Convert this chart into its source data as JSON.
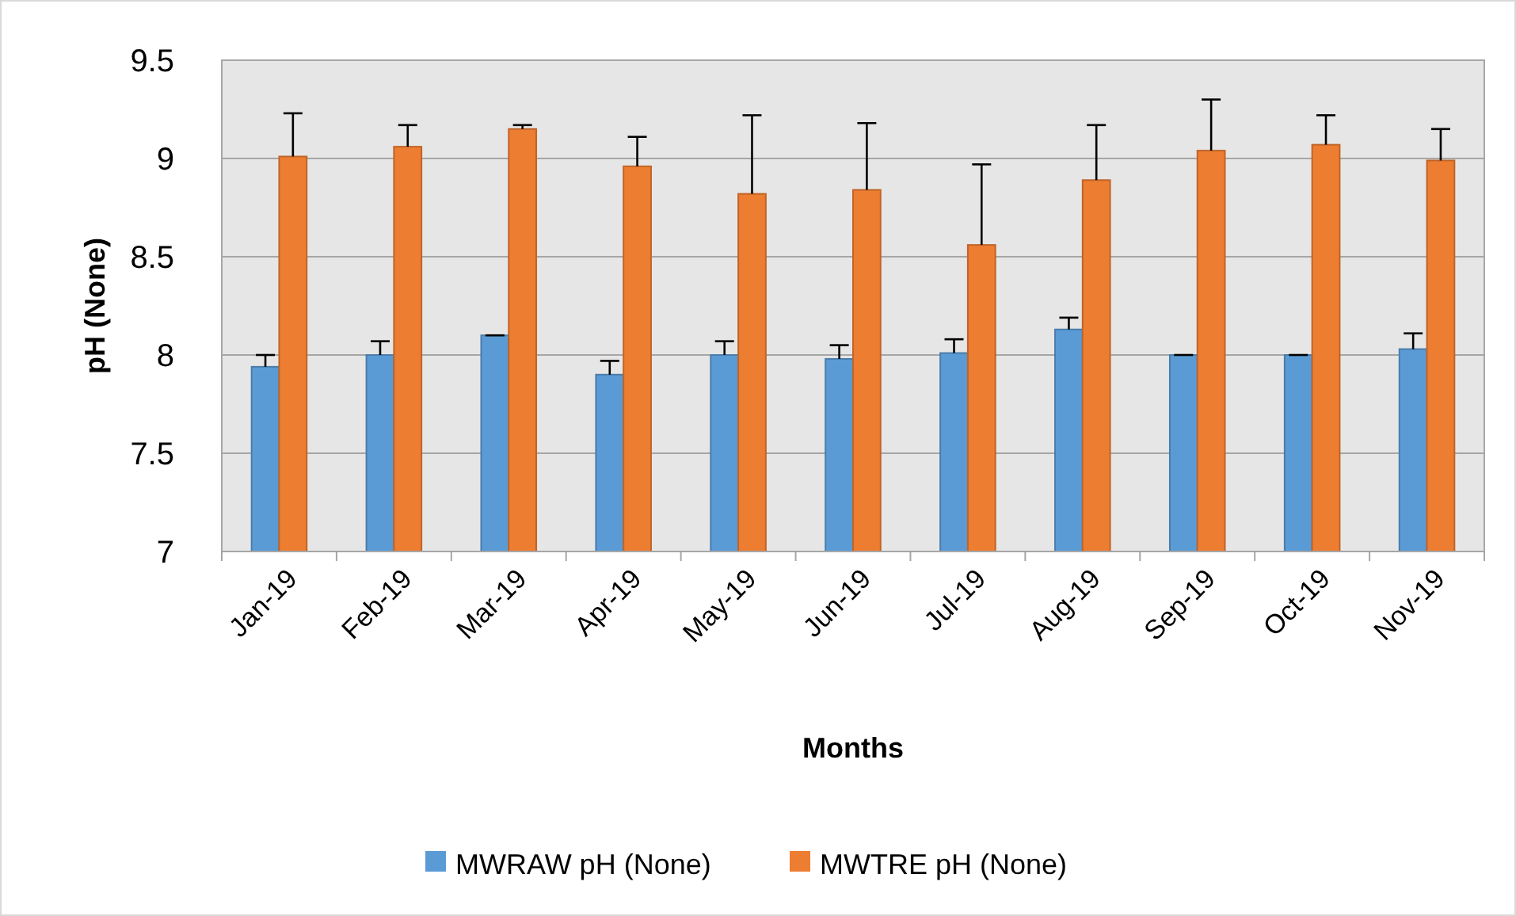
{
  "chart_data": {
    "type": "bar",
    "xlabel": "Months",
    "ylabel": "pH (None)",
    "categories": [
      "Jan-19",
      "Feb-19",
      "Mar-19",
      "Apr-19",
      "May-19",
      "Jun-19",
      "Jul-19",
      "Aug-19",
      "Sep-19",
      "Oct-19",
      "Nov-19"
    ],
    "series": [
      {
        "name": "MWRAW pH (None)",
        "color": "#5b9bd5",
        "values": [
          7.94,
          8.0,
          8.1,
          7.9,
          8.0,
          7.98,
          8.01,
          8.13,
          8.0,
          8.0,
          8.03
        ],
        "errors": [
          [
            7.94,
            8.0
          ],
          [
            8.0,
            8.07
          ],
          [
            8.1,
            8.1
          ],
          [
            7.9,
            7.97
          ],
          [
            8.0,
            8.07
          ],
          [
            7.98,
            8.05
          ],
          [
            8.01,
            8.08
          ],
          [
            8.13,
            8.19
          ],
          [
            8.0,
            8.0
          ],
          [
            8.0,
            8.0
          ],
          [
            8.03,
            8.11
          ]
        ]
      },
      {
        "name": "MWTRE pH (None)",
        "color": "#ed7d31",
        "values": [
          9.01,
          9.06,
          9.15,
          8.96,
          8.82,
          8.84,
          8.56,
          8.89,
          9.04,
          9.07,
          8.99
        ],
        "errors": [
          [
            9.01,
            9.23
          ],
          [
            9.06,
            9.17
          ],
          [
            9.15,
            9.17
          ],
          [
            8.96,
            9.11
          ],
          [
            8.82,
            9.22
          ],
          [
            8.84,
            9.18
          ],
          [
            8.56,
            8.97
          ],
          [
            8.89,
            9.17
          ],
          [
            9.04,
            9.3
          ],
          [
            9.07,
            9.22
          ],
          [
            8.99,
            9.15
          ]
        ]
      }
    ],
    "ylim": [
      7,
      9.5
    ],
    "yticks": [
      7,
      7.5,
      8,
      8.5,
      9,
      9.5
    ],
    "grid": "y",
    "legend": "bottom"
  }
}
